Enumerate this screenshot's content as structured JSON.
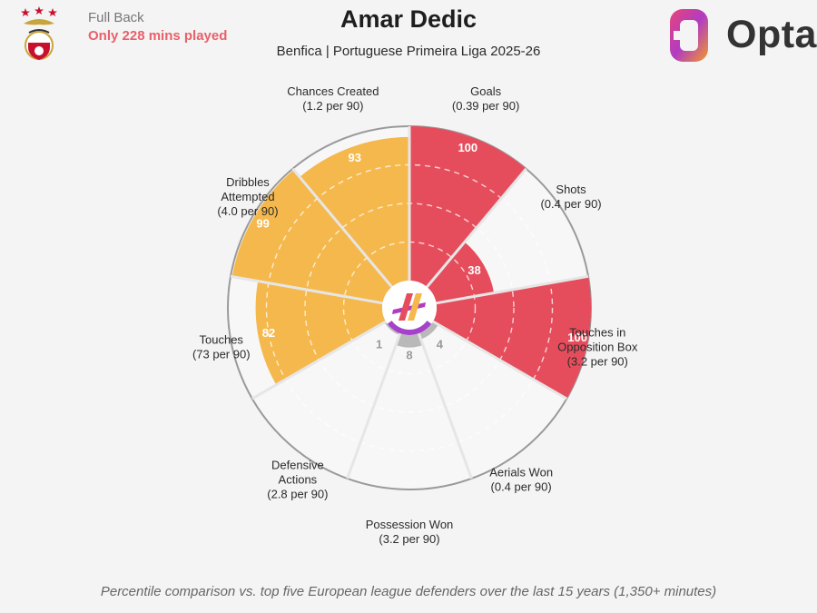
{
  "player": {
    "position": "Full Back",
    "minutes_note": "Only 228 mins played",
    "name": "Amar Dedic",
    "subtitle": "Benfica | Portuguese Primeira Liga 2025-26"
  },
  "brand": {
    "name": "Opta"
  },
  "footnote": "Percentile comparison vs. top five European league defenders over the last 15 years (1,350+ minutes)",
  "colors": {
    "attacking": "#e64d5c",
    "possession": "#f5b84c",
    "defending": "#b9b9b9",
    "hub_accent": "#a442c9",
    "background": "#f4f4f4"
  },
  "chart_data": {
    "type": "polar_bar",
    "ylim": [
      0,
      100
    ],
    "grid": true,
    "categories": [
      {
        "name": "Goals",
        "rate": "(0.39 per 90)",
        "value": 100,
        "group": "attacking"
      },
      {
        "name": "Shots",
        "rate": "(0.4 per 90)",
        "value": 38,
        "group": "attacking"
      },
      {
        "name": "Touches in Opposition Box",
        "rate": "(3.2 per 90)",
        "value": 100,
        "group": "attacking"
      },
      {
        "name": "Aerials Won",
        "rate": "(0.4 per 90)",
        "value": 4,
        "group": "defending"
      },
      {
        "name": "Possession Won",
        "rate": "(3.2 per 90)",
        "value": 8,
        "group": "defending"
      },
      {
        "name": "Defensive Actions",
        "rate": "(2.8 per 90)",
        "value": 1,
        "group": "defending"
      },
      {
        "name": "Touches",
        "rate": "(73 per 90)",
        "value": 82,
        "group": "possession"
      },
      {
        "name": "Dribbles Attempted",
        "rate": "(4.0 per 90)",
        "value": 99,
        "group": "possession"
      },
      {
        "name": "Chances Created",
        "rate": "(1.2 per 90)",
        "value": 93,
        "group": "possession"
      }
    ]
  }
}
